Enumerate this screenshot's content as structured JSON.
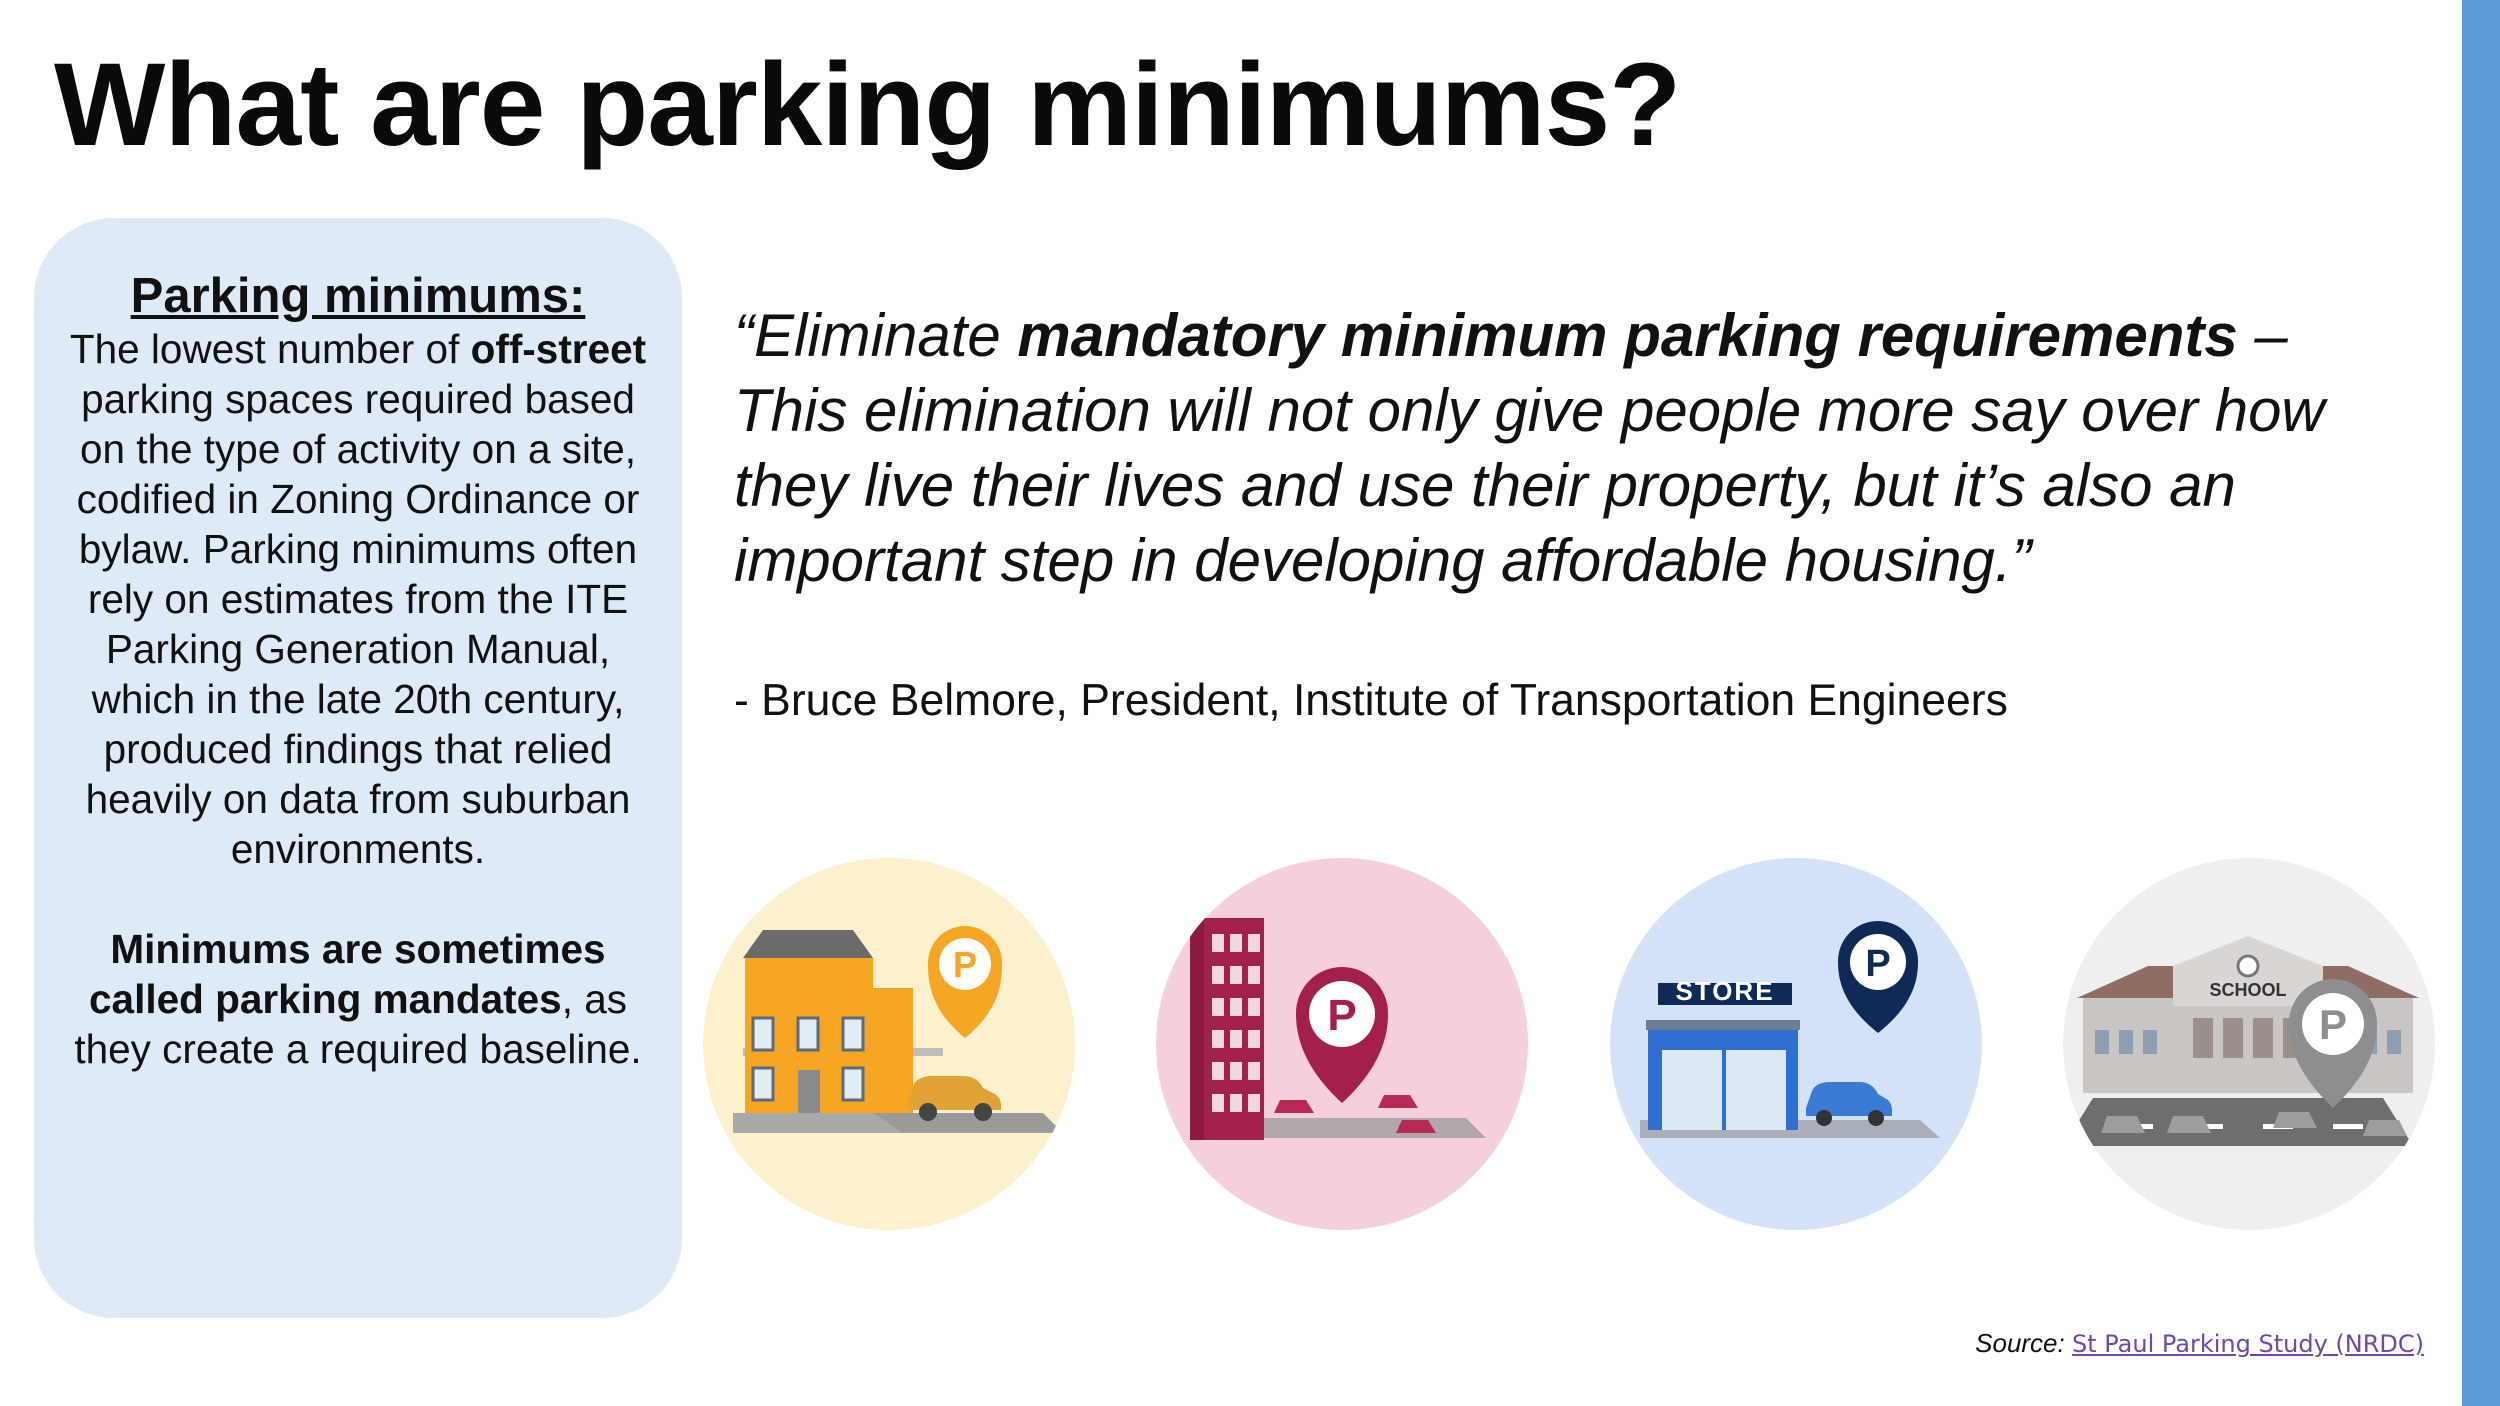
{
  "title": "What are parking minimums?",
  "definition": {
    "heading": "Parking minimums:",
    "p1_a": "The lowest number of ",
    "p1_b": "off-street",
    "p1_c": " parking spaces required based on the type of activity on a site, codified in Zoning Ordinance or bylaw. Parking minimums often rely on estimates from the ITE Parking Generation Manual, which in the late 20th century, produced findings that relied heavily on data from suburban environments.",
    "p2_a": "Minimums are sometimes called parking mandates",
    "p2_b": ", as they create a required baseline."
  },
  "quote": {
    "open": "“Eliminate ",
    "bold": "mandatory minimum parking requirements",
    "rest": " – This elimination will not only give people more say over how they live their lives and use their property, but it’s also an important step in developing affordable housing.”",
    "attribution": "- Bruce Belmore, President, Institute of Transportation Engineers"
  },
  "icons": [
    {
      "name": "house-parking-icon",
      "bg": "#fdf0cc",
      "pin": "#f5a623"
    },
    {
      "name": "apartment-parking-icon",
      "bg": "#f5cfdc",
      "pin": "#a3204a"
    },
    {
      "name": "store-parking-icon",
      "bg": "#d3e2f6",
      "pin": "#0e2a57",
      "sign": "STORE"
    },
    {
      "name": "school-parking-icon",
      "bg": "#efefef",
      "pin": "#9c9c9c",
      "sign": "SCHOOL"
    }
  ],
  "source": {
    "label": "Source:",
    "link_text": "St Paul Parking Study (NRDC)"
  },
  "colors": {
    "accent": "#5b9bd5",
    "box_bg": "#deeaf6",
    "link": "#7048a6"
  }
}
